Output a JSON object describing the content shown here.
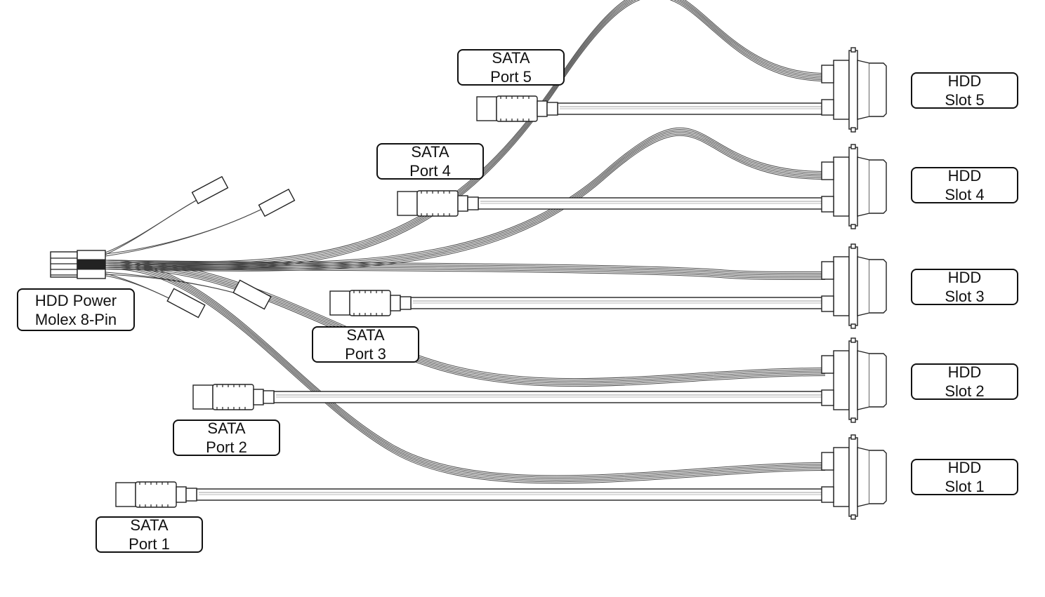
{
  "diagram": {
    "power_connector": {
      "line1": "HDD Power",
      "line2": "Molex 8-Pin"
    },
    "sata_ports": [
      {
        "line1": "SATA",
        "line2": "Port 1"
      },
      {
        "line1": "SATA",
        "line2": "Port 2"
      },
      {
        "line1": "SATA",
        "line2": "Port 3"
      },
      {
        "line1": "SATA",
        "line2": "Port 4"
      },
      {
        "line1": "SATA",
        "line2": "Port 5"
      }
    ],
    "hdd_slots": [
      {
        "line1": "HDD",
        "line2": "Slot 1"
      },
      {
        "line1": "HDD",
        "line2": "Slot 2"
      },
      {
        "line1": "HDD",
        "line2": "Slot 3"
      },
      {
        "line1": "HDD",
        "line2": "Slot 4"
      },
      {
        "line1": "HDD",
        "line2": "Slot 5"
      }
    ]
  }
}
